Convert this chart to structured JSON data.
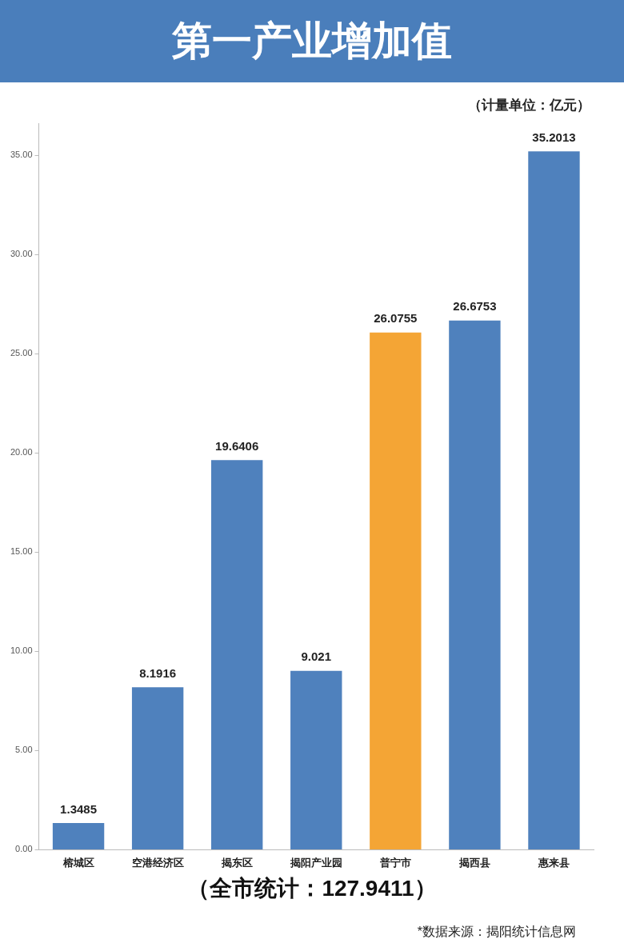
{
  "chart_data": {
    "type": "bar",
    "title": "第一产业增加值",
    "categories": [
      "榕城区",
      "空港经济区",
      "揭东区",
      "揭阳产业园",
      "普宁市",
      "揭西县",
      "惠来县"
    ],
    "values": [
      1.3485,
      8.1916,
      19.6406,
      9.021,
      26.0755,
      26.6753,
      35.2013
    ],
    "colors": [
      "#4f81bd",
      "#4f81bd",
      "#4f81bd",
      "#4f81bd",
      "#f4a535",
      "#4f81bd",
      "#4f81bd"
    ],
    "ylim": [
      0,
      36.6
    ],
    "yticks": [
      {
        "value": 0,
        "label": "0.00"
      },
      {
        "value": 5,
        "label": "5.00"
      },
      {
        "value": 10,
        "label": "10.00"
      },
      {
        "value": 15,
        "label": "15.00"
      },
      {
        "value": 20,
        "label": "20.00"
      },
      {
        "value": 25,
        "label": "25.00"
      },
      {
        "value": 30,
        "label": "30.00"
      },
      {
        "value": 35,
        "label": "35.00"
      }
    ],
    "grid": false,
    "legend": false,
    "data_labels": true,
    "annotations": [
      "（计量单位：亿元）",
      "（全市统计：127.9411）",
      "*数据来源：揭阳统计信息网"
    ]
  }
}
